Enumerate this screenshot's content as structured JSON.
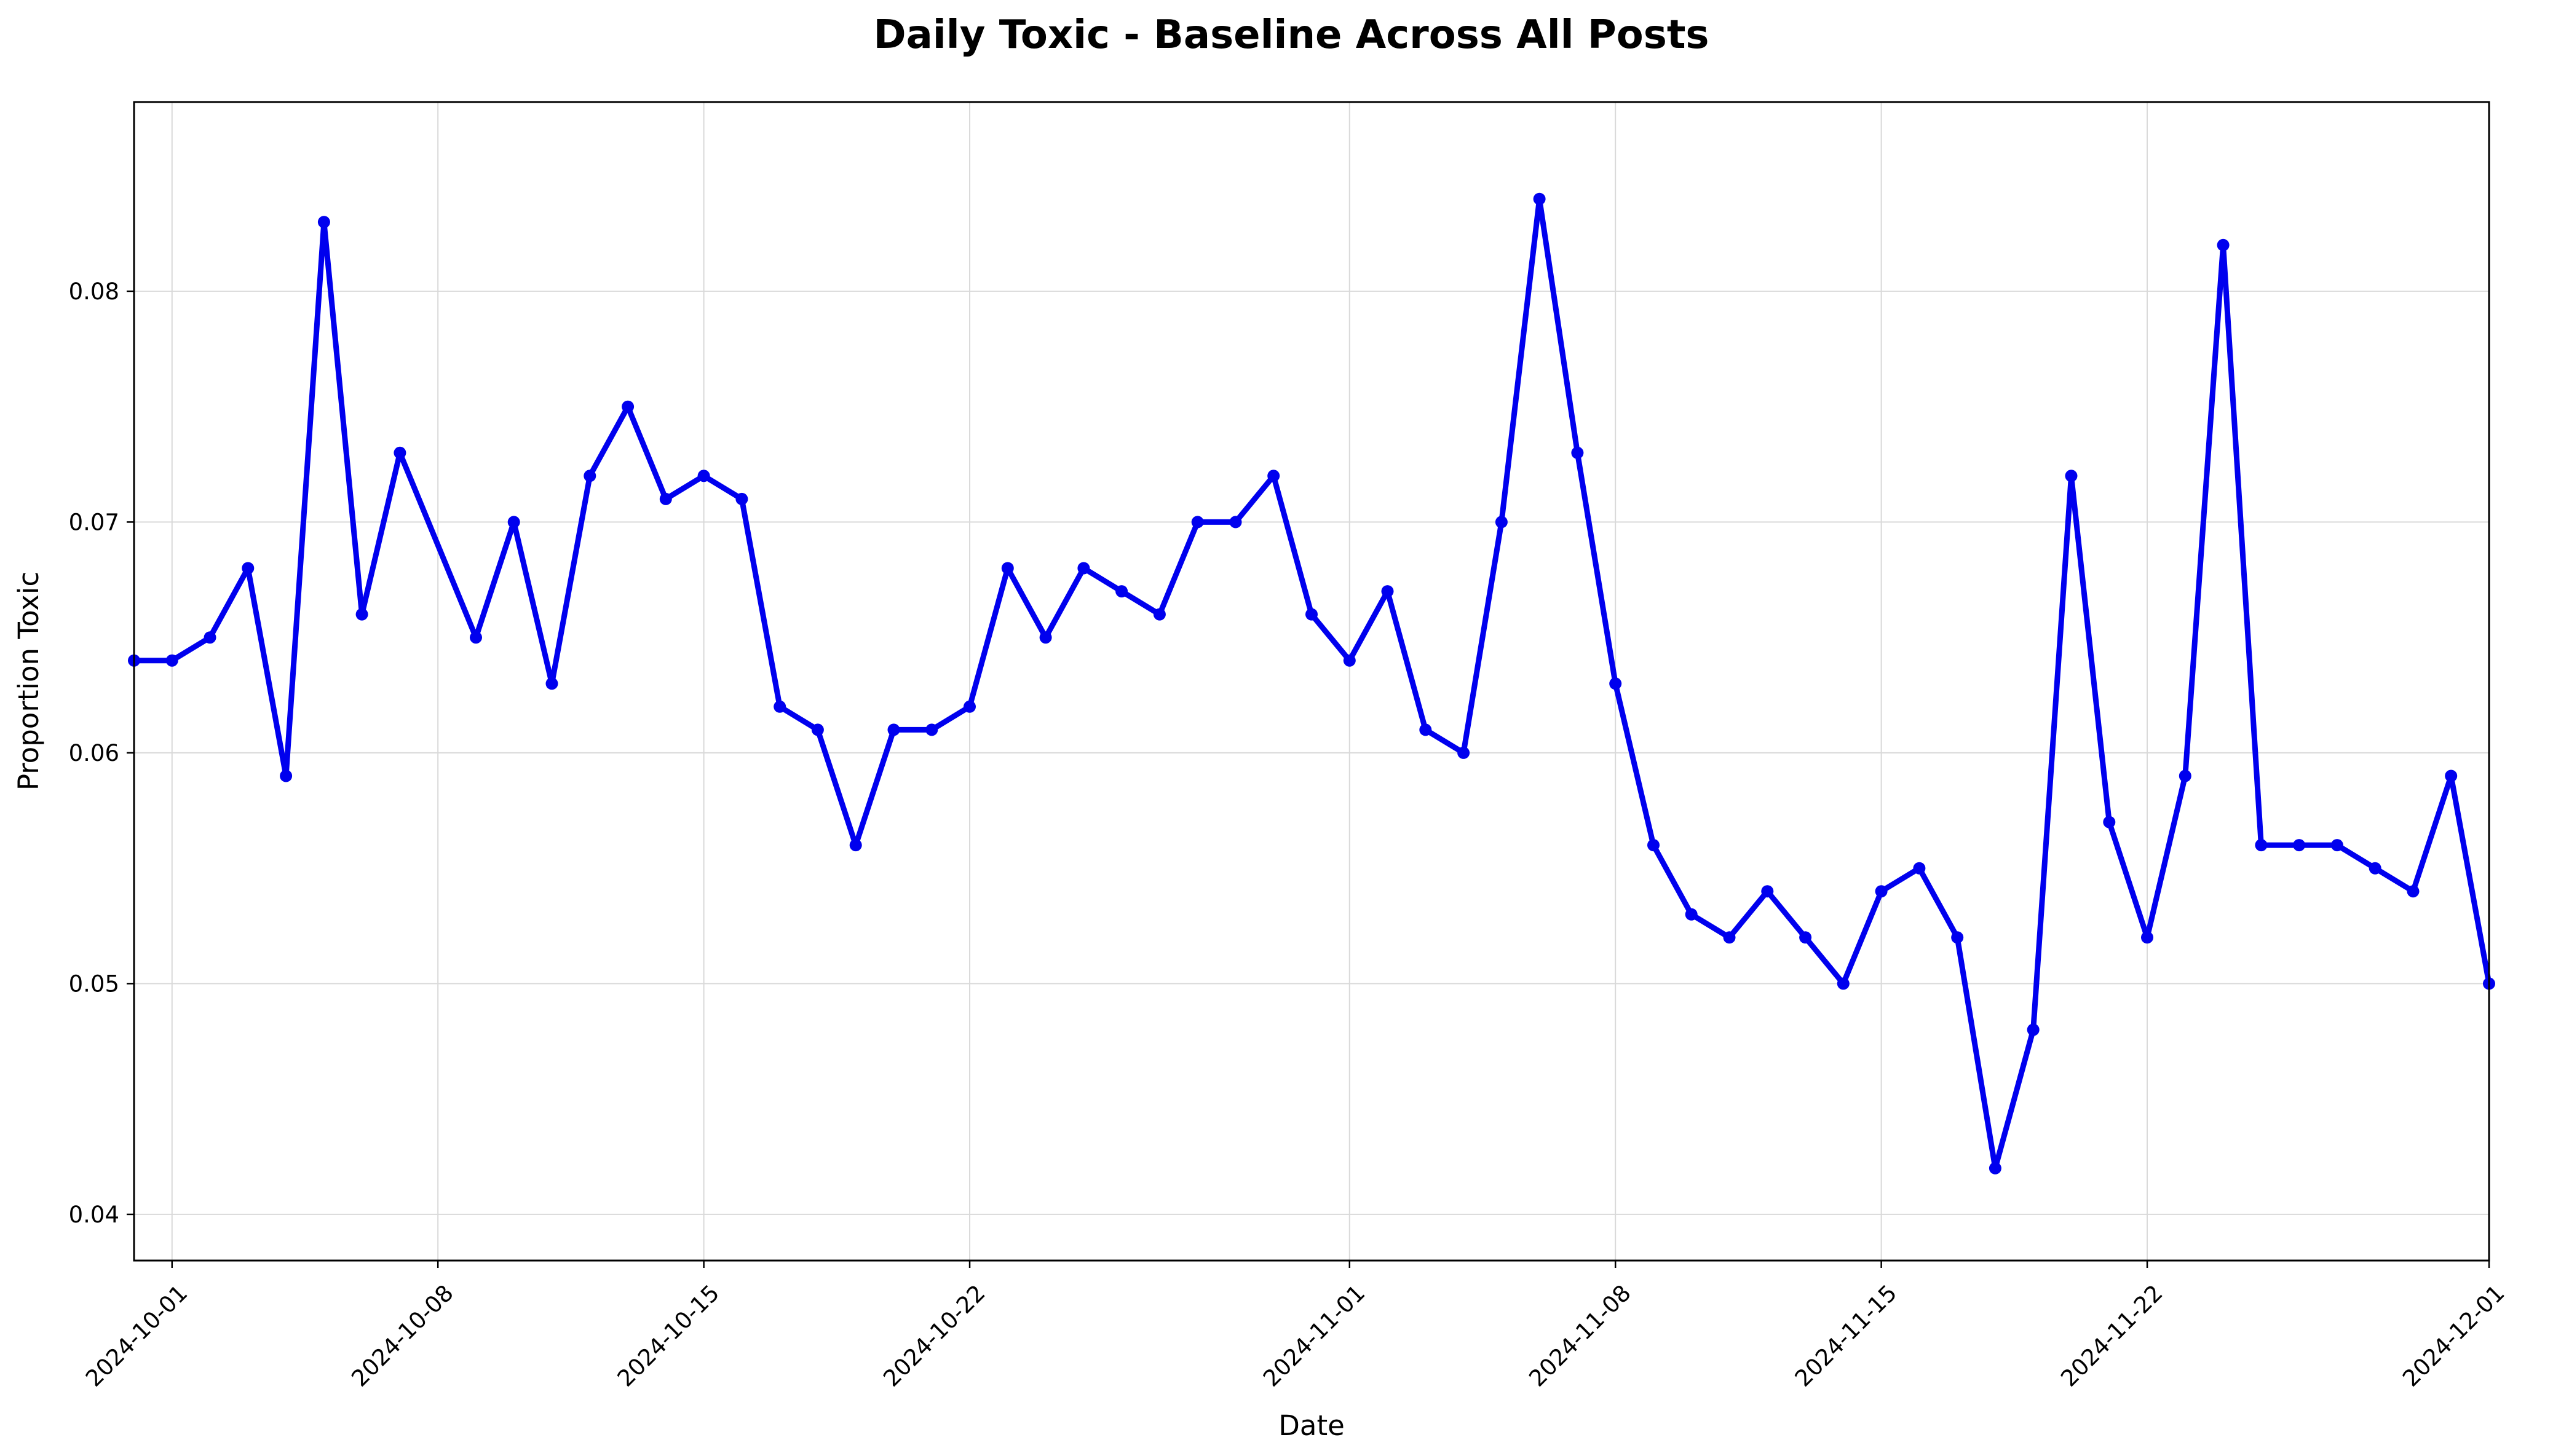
{
  "chart_data": {
    "type": "line",
    "title": "Daily Toxic - Baseline Across All Posts",
    "xlabel": "Date",
    "ylabel": "Proportion Toxic",
    "x_range": [
      "2024-09-30",
      "2024-12-01"
    ],
    "ylim": [
      0.038,
      0.0882
    ],
    "y_ticks": [
      0.04,
      0.05,
      0.06,
      0.07,
      0.08
    ],
    "y_tick_labels": [
      "0.04",
      "0.05",
      "0.06",
      "0.07",
      "0.08"
    ],
    "x_ticks": [
      "2024-10-01",
      "2024-10-08",
      "2024-10-15",
      "2024-10-22",
      "2024-11-01",
      "2024-11-08",
      "2024-11-15",
      "2024-11-22",
      "2024-12-01"
    ],
    "grid": true,
    "color": "#0000ee",
    "series": [
      {
        "x": [
          "2024-09-30",
          "2024-10-01",
          "2024-10-02",
          "2024-10-03",
          "2024-10-04",
          "2024-10-05",
          "2024-10-06",
          "2024-10-07",
          "2024-10-09",
          "2024-10-10",
          "2024-10-11",
          "2024-10-12",
          "2024-10-13",
          "2024-10-14",
          "2024-10-15",
          "2024-10-16",
          "2024-10-17",
          "2024-10-18",
          "2024-10-19",
          "2024-10-20",
          "2024-10-21",
          "2024-10-22",
          "2024-10-23",
          "2024-10-24",
          "2024-10-25",
          "2024-10-26",
          "2024-10-27",
          "2024-10-28",
          "2024-10-29",
          "2024-10-30",
          "2024-10-31",
          "2024-11-01",
          "2024-11-02",
          "2024-11-03",
          "2024-11-04",
          "2024-11-05",
          "2024-11-06",
          "2024-11-07",
          "2024-11-08",
          "2024-11-09",
          "2024-11-10",
          "2024-11-11",
          "2024-11-12",
          "2024-11-13",
          "2024-11-14",
          "2024-11-15",
          "2024-11-16",
          "2024-11-17",
          "2024-11-18",
          "2024-11-19",
          "2024-11-20",
          "2024-11-21",
          "2024-11-22",
          "2024-11-23",
          "2024-11-24",
          "2024-11-25",
          "2024-11-26",
          "2024-11-27",
          "2024-11-28",
          "2024-11-29",
          "2024-11-30",
          "2024-12-01"
        ],
        "values": [
          0.064,
          0.064,
          0.065,
          0.068,
          0.059,
          0.083,
          0.066,
          0.073,
          0.065,
          0.07,
          0.063,
          0.072,
          0.075,
          0.071,
          0.072,
          0.071,
          0.062,
          0.061,
          0.056,
          0.061,
          0.061,
          0.062,
          0.068,
          0.065,
          0.068,
          0.067,
          0.066,
          0.07,
          0.07,
          0.072,
          0.066,
          0.064,
          0.067,
          0.061,
          0.06,
          0.07,
          0.084,
          0.073,
          0.063,
          0.056,
          0.053,
          0.052,
          0.054,
          0.052,
          0.05,
          0.054,
          0.055,
          0.052,
          0.042,
          0.048,
          0.072,
          0.057,
          0.052,
          0.059,
          0.082,
          0.056,
          0.056,
          0.056,
          0.055,
          0.054,
          0.059,
          0.05
        ]
      }
    ]
  }
}
